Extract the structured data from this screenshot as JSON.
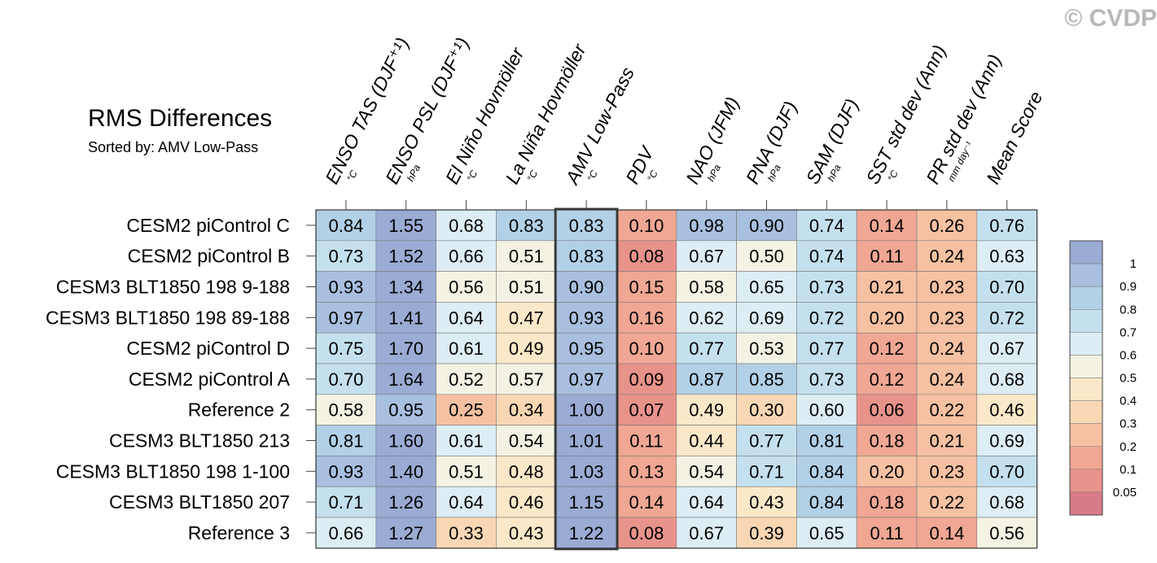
{
  "title": "RMS Differences",
  "subtitle": "Sorted by: AMV Low-Pass",
  "watermark": "© CVDP",
  "chart_data": {
    "type": "heatmap",
    "title": "RMS Differences",
    "sorted_by": "AMV Low-Pass",
    "highlighted_column": "AMV Low-Pass",
    "columns": [
      {
        "name": "ENSO TAS (DJF⁺¹)",
        "unit": "°C"
      },
      {
        "name": "ENSO PSL (DJF⁺¹)",
        "unit": "hPa"
      },
      {
        "name": "El Niño Hovmöller",
        "unit": "°C"
      },
      {
        "name": "La Niña Hovmöller",
        "unit": "°C"
      },
      {
        "name": "AMV Low-Pass",
        "unit": "°C"
      },
      {
        "name": "PDV",
        "unit": "°C"
      },
      {
        "name": "NAO (JFM)",
        "unit": "hPa"
      },
      {
        "name": "PNA (DJF)",
        "unit": "hPa"
      },
      {
        "name": "SAM (DJF)",
        "unit": "hPa"
      },
      {
        "name": "SST std dev (Ann)",
        "unit": "°C"
      },
      {
        "name": "PR std dev (Ann)",
        "unit": "mm day⁻¹"
      },
      {
        "name": "Mean Score",
        "unit": ""
      }
    ],
    "rows": [
      "CESM2 piControl C",
      "CESM2 piControl B",
      "CESM3 BLT1850 198 9-188",
      "CESM3 BLT1850 198 89-188",
      "CESM2 piControl D",
      "CESM2 piControl A",
      "Reference 2",
      "CESM3 BLT1850 213",
      "CESM3 BLT1850 198 1-100",
      "CESM3 BLT1850 207",
      "Reference 3"
    ],
    "values": [
      [
        "0.84",
        "1.55",
        "0.68",
        "0.83",
        "0.83",
        "0.10",
        "0.98",
        "0.90",
        "0.74",
        "0.14",
        "0.26",
        "0.76"
      ],
      [
        "0.73",
        "1.52",
        "0.66",
        "0.51",
        "0.83",
        "0.08",
        "0.67",
        "0.50",
        "0.74",
        "0.11",
        "0.24",
        "0.63"
      ],
      [
        "0.93",
        "1.34",
        "0.56",
        "0.51",
        "0.90",
        "0.15",
        "0.58",
        "0.65",
        "0.73",
        "0.21",
        "0.23",
        "0.70"
      ],
      [
        "0.97",
        "1.41",
        "0.64",
        "0.47",
        "0.93",
        "0.16",
        "0.62",
        "0.69",
        "0.72",
        "0.20",
        "0.23",
        "0.72"
      ],
      [
        "0.75",
        "1.70",
        "0.61",
        "0.49",
        "0.95",
        "0.10",
        "0.77",
        "0.53",
        "0.77",
        "0.12",
        "0.24",
        "0.67"
      ],
      [
        "0.70",
        "1.64",
        "0.52",
        "0.57",
        "0.97",
        "0.09",
        "0.87",
        "0.85",
        "0.73",
        "0.12",
        "0.24",
        "0.68"
      ],
      [
        "0.58",
        "0.95",
        "0.25",
        "0.34",
        "1.00",
        "0.07",
        "0.49",
        "0.30",
        "0.60",
        "0.06",
        "0.22",
        "0.46"
      ],
      [
        "0.81",
        "1.60",
        "0.61",
        "0.54",
        "1.01",
        "0.11",
        "0.44",
        "0.77",
        "0.81",
        "0.18",
        "0.21",
        "0.69"
      ],
      [
        "0.93",
        "1.40",
        "0.51",
        "0.48",
        "1.03",
        "0.13",
        "0.54",
        "0.71",
        "0.84",
        "0.20",
        "0.23",
        "0.70"
      ],
      [
        "0.71",
        "1.26",
        "0.64",
        "0.46",
        "1.15",
        "0.14",
        "0.64",
        "0.43",
        "0.84",
        "0.18",
        "0.22",
        "0.68"
      ],
      [
        "0.66",
        "1.27",
        "0.33",
        "0.43",
        "1.22",
        "0.08",
        "0.67",
        "0.39",
        "0.65",
        "0.11",
        "0.14",
        "0.56"
      ]
    ],
    "colorbar": {
      "labels": [
        "1",
        "0.9",
        "0.8",
        "0.7",
        "0.6",
        "0.5",
        "0.4",
        "0.3",
        "0.2",
        "0.1",
        "0.05"
      ],
      "thresholds": [
        0.05,
        0.1,
        0.2,
        0.3,
        0.4,
        0.5,
        0.6,
        0.7,
        0.8,
        0.9,
        1.0
      ],
      "colors": [
        "#d97a88",
        "#e8938a",
        "#f0a793",
        "#f6c1a2",
        "#fad7b4",
        "#fbe8c8",
        "#f4f3e3",
        "#dcedf3",
        "#c4e0ee",
        "#b2d0e6",
        "#a8bfdf",
        "#9aabd4"
      ]
    }
  }
}
